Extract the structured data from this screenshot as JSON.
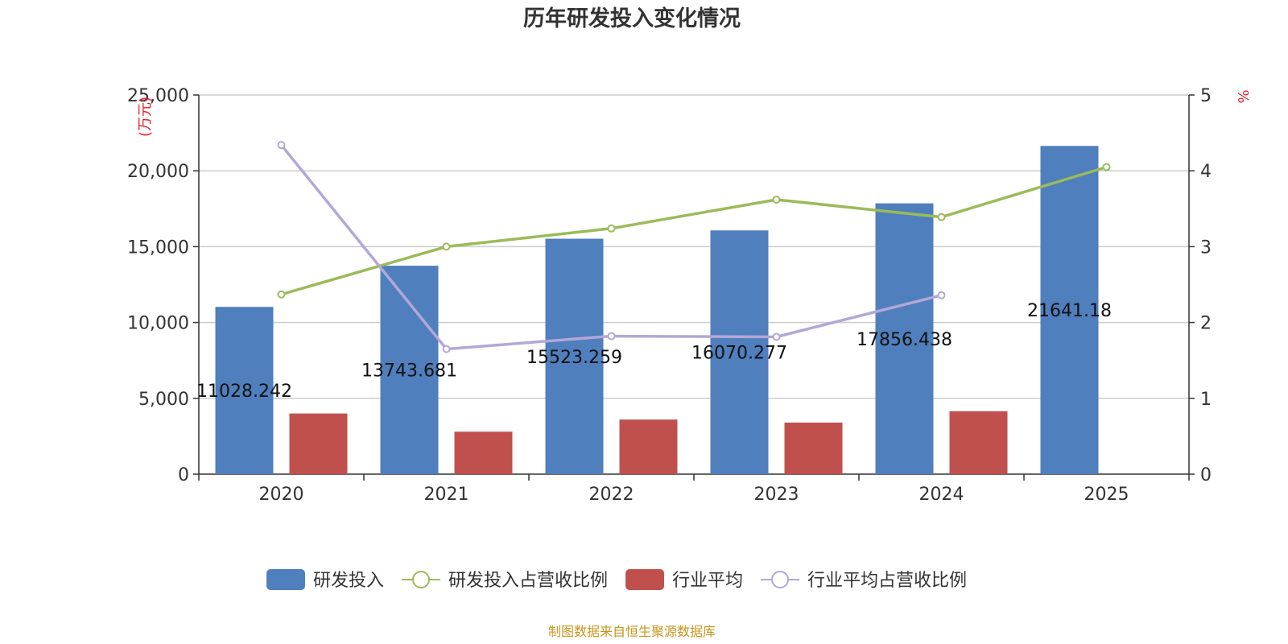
{
  "chart_data": {
    "type": "bar",
    "title": "历年研发投入变化情况",
    "categories": [
      "2020",
      "2021",
      "2022",
      "2023",
      "2024",
      "2025"
    ],
    "y_left": {
      "unit": "(万元)",
      "ylim": [
        0,
        25000
      ],
      "ticks": [
        "0",
        "5,000",
        "10,000",
        "15,000",
        "20,000",
        "25,000"
      ],
      "tick_values": [
        0,
        5000,
        10000,
        15000,
        20000,
        25000
      ]
    },
    "y_right": {
      "unit": "%",
      "ylim": [
        0,
        5
      ],
      "ticks": [
        "0",
        "1",
        "2",
        "3",
        "4",
        "5"
      ],
      "tick_values": [
        0,
        1,
        2,
        3,
        4,
        5
      ]
    },
    "grid": true,
    "legend_position": "bottom",
    "series": [
      {
        "name": "研发投入",
        "kind": "bar",
        "axis": "left",
        "color": "#4f7fbd",
        "values": [
          11028.242,
          13743.681,
          15523.259,
          16070.277,
          17856.438,
          21641.18
        ],
        "labels": [
          "11028.242",
          "13743.681",
          "15523.259",
          "16070.277",
          "17856.438",
          "21641.18"
        ]
      },
      {
        "name": "研发投入占营收比例",
        "kind": "line",
        "axis": "right",
        "color": "#9bbb59",
        "values": [
          2.37,
          3.0,
          3.24,
          3.62,
          3.39,
          4.05
        ]
      },
      {
        "name": "行业平均",
        "kind": "bar",
        "axis": "left",
        "color": "#c0504d",
        "values": [
          4000,
          2800,
          3600,
          3400,
          4150,
          null
        ]
      },
      {
        "name": "行业平均占营收比例",
        "kind": "line",
        "axis": "right",
        "color": "#b3a7d6",
        "values": [
          4.34,
          1.65,
          1.82,
          1.81,
          2.36,
          null
        ]
      }
    ],
    "source": "制图数据来自恒生聚源数据库"
  }
}
